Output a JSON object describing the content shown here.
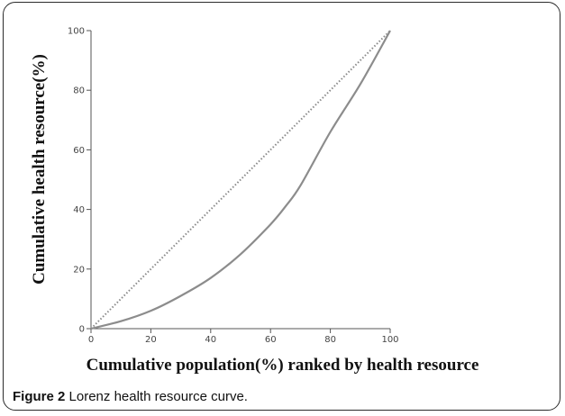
{
  "chart_data": {
    "type": "line",
    "title": "",
    "xlabel": "Cumulative population(%) ranked by health resource",
    "ylabel": "Cumulative health resource(%)",
    "xlim": [
      0,
      100
    ],
    "ylim": [
      0,
      100
    ],
    "x_ticks": [
      0,
      20,
      40,
      60,
      80,
      100
    ],
    "y_ticks": [
      0,
      20,
      40,
      60,
      80,
      100
    ],
    "grid": false,
    "series": [
      {
        "style": "dotted",
        "color": "#8a8a8a",
        "x": [
          0,
          100
        ],
        "y": [
          0,
          100
        ]
      },
      {
        "style": "solid",
        "color": "#8c8c8c",
        "x": [
          0,
          10,
          20,
          30,
          40,
          50,
          60,
          65,
          70,
          80,
          90,
          100
        ],
        "y": [
          0,
          2.5,
          6,
          11,
          17,
          25,
          35,
          41,
          48,
          66,
          82,
          100
        ]
      }
    ]
  },
  "caption": {
    "figure_label": "Figure 2",
    "text": "Lorenz health resource curve."
  }
}
